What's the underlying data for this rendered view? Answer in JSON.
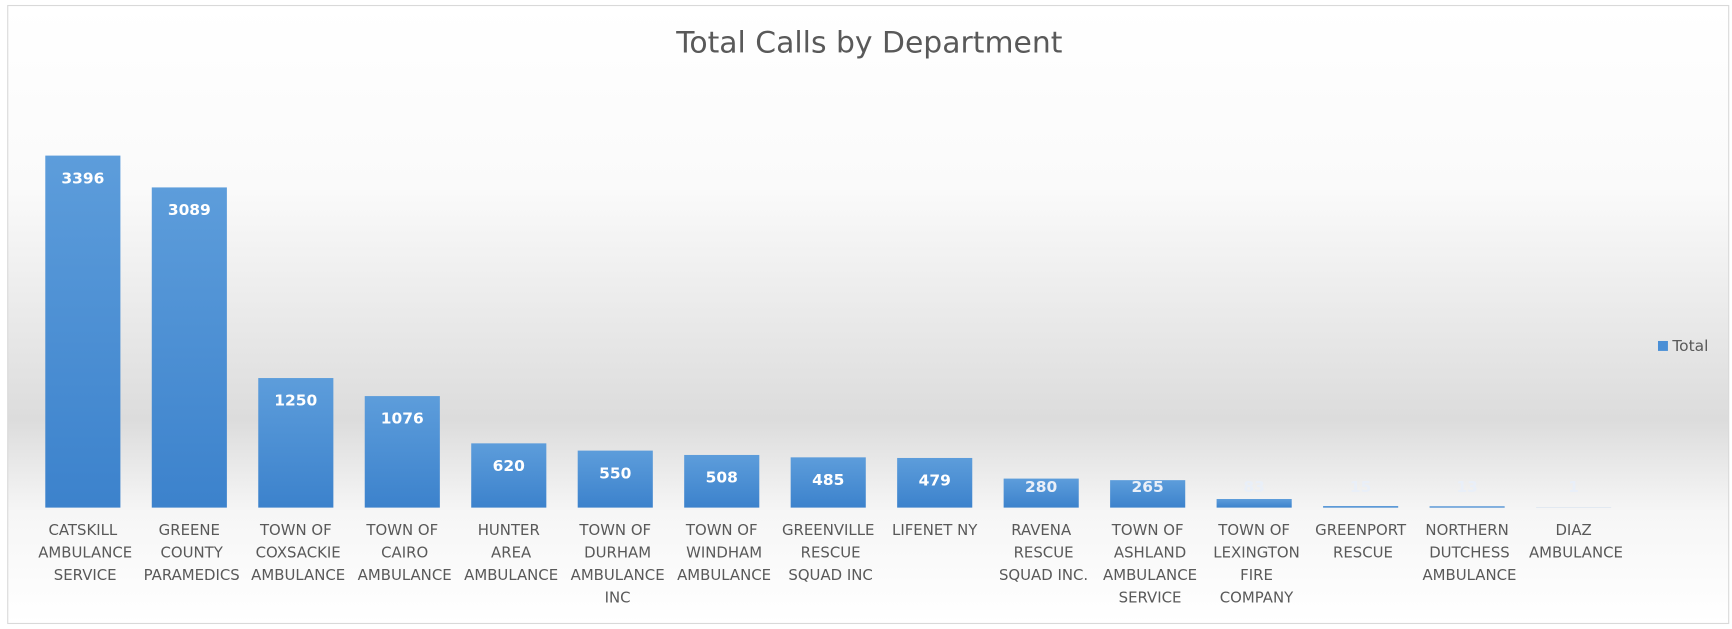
{
  "chart_data": {
    "type": "bar",
    "title": "Total Calls by Department",
    "categories": [
      "CATSKILL AMBULANCE SERVICE",
      "GREENE COUNTY PARAMEDICS",
      "TOWN OF COXSACKIE AMBULANCE",
      "TOWN OF CAIRO AMBULANCE",
      "HUNTER AREA AMBULANCE",
      "TOWN OF DURHAM AMBULANCE INC",
      "TOWN OF WINDHAM AMBULANCE",
      "GREENVILLE RESCUE SQUAD INC",
      "LIFENET NY",
      "RAVENA RESCUE SQUAD INC.",
      "TOWN OF ASHLAND AMBULANCE SERVICE",
      "TOWN OF LEXINGTON FIRE COMPANY",
      "GREENPORT RESCUE",
      "NORTHERN DUTCHESS AMBULANCE",
      "DIAZ AMBULANCE"
    ],
    "series": [
      {
        "name": "Total",
        "color": "#4a8fd6",
        "values": [
          3396,
          3089,
          1250,
          1076,
          620,
          550,
          508,
          485,
          479,
          280,
          265,
          83,
          15,
          13,
          1
        ]
      }
    ],
    "legend": "right"
  }
}
